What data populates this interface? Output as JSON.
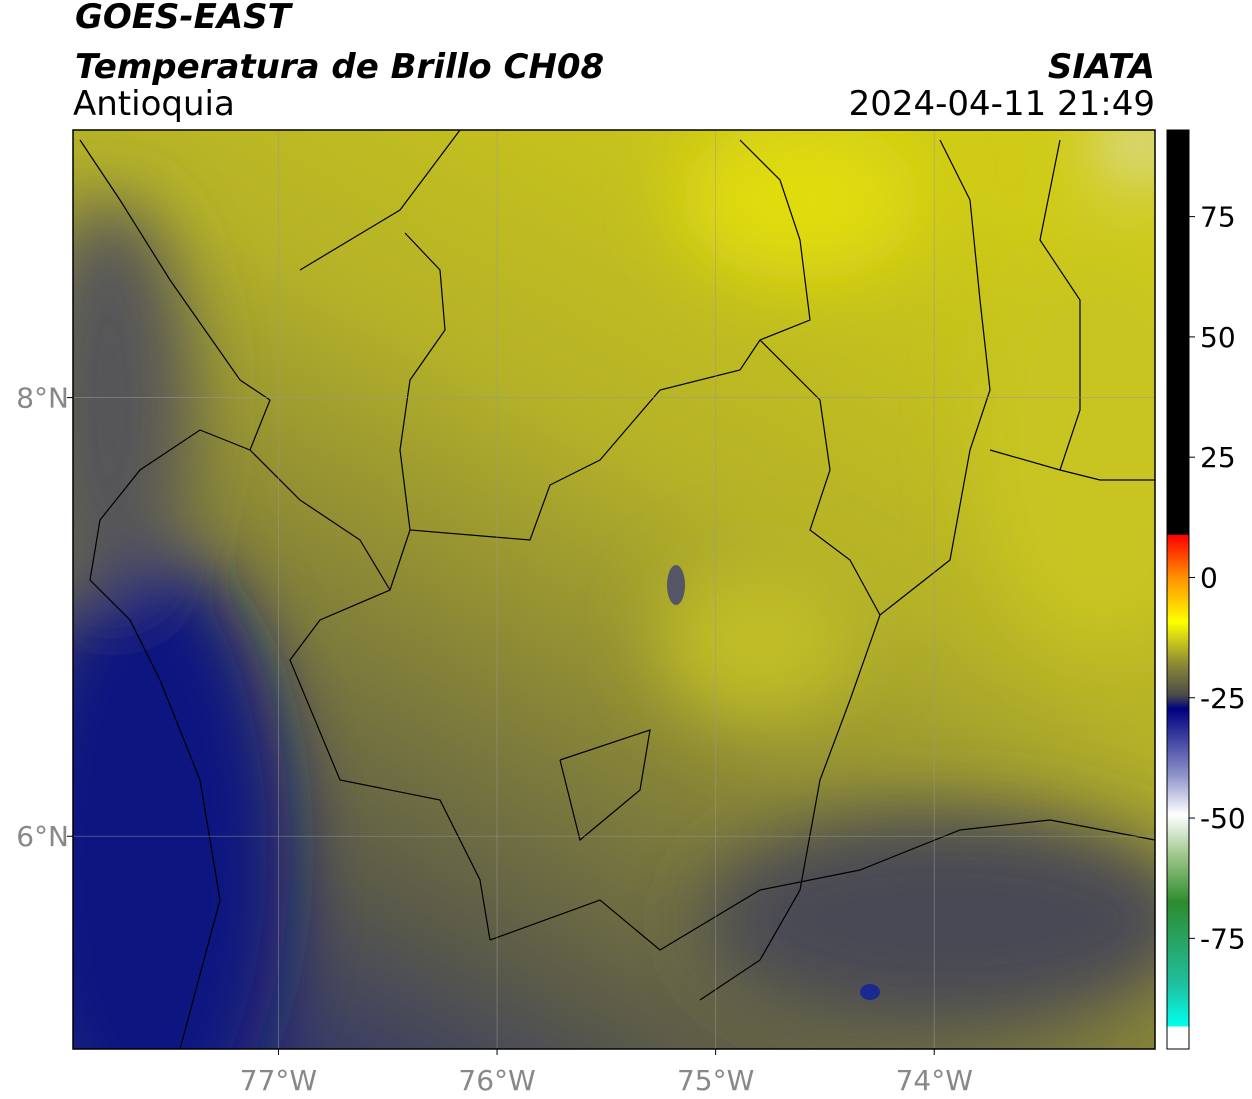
{
  "header": {
    "title": "GOES-EAST",
    "subtitle": "Temperatura de Brillo CH08",
    "region": "Antioquia",
    "source": "SIATA",
    "timestamp": "2024-04-11 21:49"
  },
  "map": {
    "lon_range": [
      -77.94,
      -72.99
    ],
    "lat_range": [
      5.03,
      9.22
    ],
    "lon_ticks": [
      {
        "value": -77,
        "label": "77°W"
      },
      {
        "value": -76,
        "label": "76°W"
      },
      {
        "value": -75,
        "label": "75°W"
      },
      {
        "value": -74,
        "label": "74°W"
      }
    ],
    "lat_ticks": [
      {
        "value": 8,
        "label": "8°N"
      },
      {
        "value": 6,
        "label": "6°N"
      }
    ],
    "grid": true
  },
  "colorbar": {
    "range": [
      -98,
      93
    ],
    "ticks": [
      -75,
      -50,
      -25,
      0,
      25,
      50,
      75
    ]
  }
}
